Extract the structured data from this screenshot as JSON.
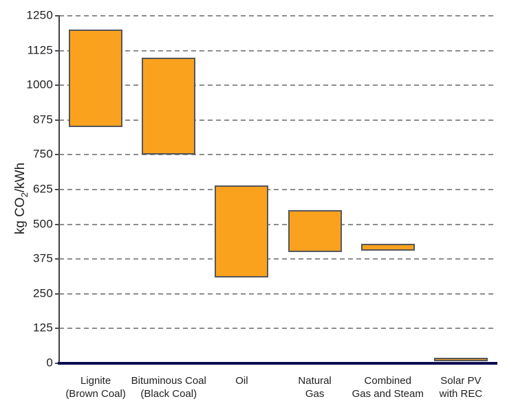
{
  "chart_data": {
    "type": "bar",
    "subtype": "floating-range-bars",
    "title": "",
    "xlabel": "",
    "ylabel_text": "kg CO2/kWh",
    "ylabel_pre": "kg CO",
    "ylabel_sub": "2",
    "ylabel_post": "/kWh",
    "ylim": [
      0,
      1250
    ],
    "yticks": [
      0,
      125,
      250,
      375,
      500,
      625,
      750,
      875,
      1000,
      1125,
      1250
    ],
    "grid": "horizontal-dashed",
    "legend": "none",
    "categories": [
      "Lignite (Brown Coal)",
      "Bituminous Coal (Black Coal)",
      "Oil",
      "Natural Gas",
      "Combined Gas and Steam",
      "Solar PV with REC"
    ],
    "category_label_lines": [
      [
        "Lignite",
        "(Brown Coal)"
      ],
      [
        "Bituminous Coal",
        "(Black Coal)"
      ],
      [
        "Oil"
      ],
      [
        "Natural",
        "Gas"
      ],
      [
        "Combined",
        "Gas and Steam"
      ],
      [
        "Solar PV",
        "with REC"
      ]
    ],
    "ranges": [
      [
        850,
        1200
      ],
      [
        750,
        1100
      ],
      [
        310,
        640
      ],
      [
        400,
        550
      ],
      [
        405,
        430
      ],
      [
        10,
        20
      ]
    ],
    "colors": {
      "bar_fill": "#FAA21E",
      "bar_border": "#55565A",
      "gridline": "#8B8D90",
      "y_axis": "#3F4043",
      "x_axis_baseline": "#0C0C50",
      "text": "#1E1E20"
    }
  }
}
